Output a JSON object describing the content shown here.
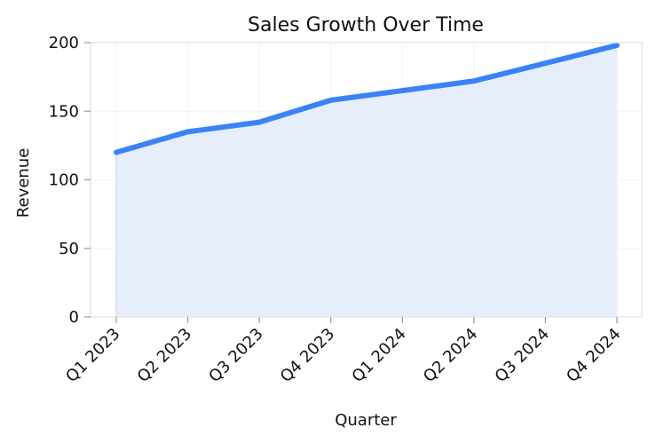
{
  "chart_data": {
    "type": "area",
    "title": "Sales Growth Over Time",
    "xlabel": "Quarter",
    "ylabel": "Revenue",
    "categories": [
      "Q1 2023",
      "Q2 2023",
      "Q3 2023",
      "Q4 2023",
      "Q1 2024",
      "Q2 2024",
      "Q3 2024",
      "Q4 2024"
    ],
    "series": [
      {
        "values": [
          120,
          135,
          142,
          158,
          165,
          172,
          185,
          198
        ]
      }
    ],
    "ylim": [
      0,
      200
    ],
    "yticks": [
      "0",
      "50",
      "100",
      "150",
      "200"
    ],
    "grid": true,
    "colors": {
      "line": "#3b82f6",
      "fill": "#e6edfb",
      "grid": "#f0f2f5",
      "spine": "#e3e6eb"
    }
  }
}
